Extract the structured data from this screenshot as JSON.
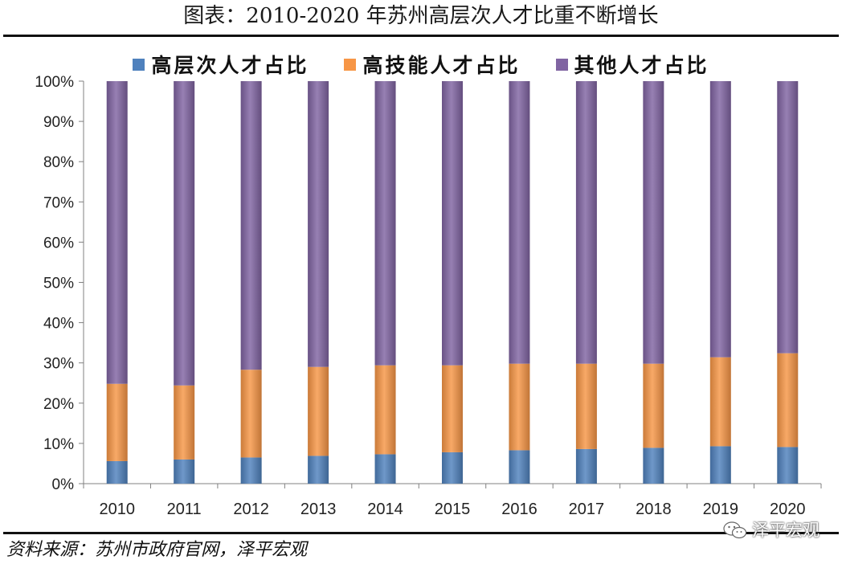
{
  "header": {
    "title": "图表：2010-2020 年苏州高层次人才比重不断增长"
  },
  "footer": {
    "source": "资料来源：苏州市政府官网，泽平宏观",
    "watermark": "泽平宏观",
    "watermark_icon": "wechat-icon"
  },
  "colors": {
    "high_level": "#4f81bd",
    "high_skill": "#f79646",
    "other": "#8064a2",
    "axis": "#808080"
  },
  "chart_data": {
    "type": "bar",
    "stacked": true,
    "title": "",
    "xlabel": "",
    "ylabel": "",
    "ylim": [
      0,
      1
    ],
    "yticks": [
      "0%",
      "10%",
      "20%",
      "30%",
      "40%",
      "50%",
      "60%",
      "70%",
      "80%",
      "90%",
      "100%"
    ],
    "grid": false,
    "legend_position": "top",
    "categories": [
      "2010",
      "2011",
      "2012",
      "2013",
      "2014",
      "2015",
      "2016",
      "2017",
      "2018",
      "2019",
      "2020"
    ],
    "series": [
      {
        "name": "高层次人才占比",
        "color": "#4f81bd",
        "values": [
          0.056,
          0.06,
          0.065,
          0.069,
          0.073,
          0.078,
          0.083,
          0.086,
          0.089,
          0.093,
          0.091
        ]
      },
      {
        "name": "高技能人才占比",
        "color": "#f79646",
        "values": [
          0.192,
          0.184,
          0.218,
          0.221,
          0.221,
          0.216,
          0.215,
          0.212,
          0.209,
          0.221,
          0.233
        ]
      },
      {
        "name": "其他人才占比",
        "color": "#8064a2",
        "values": [
          0.752,
          0.756,
          0.717,
          0.71,
          0.706,
          0.706,
          0.702,
          0.702,
          0.702,
          0.686,
          0.676
        ]
      }
    ]
  }
}
